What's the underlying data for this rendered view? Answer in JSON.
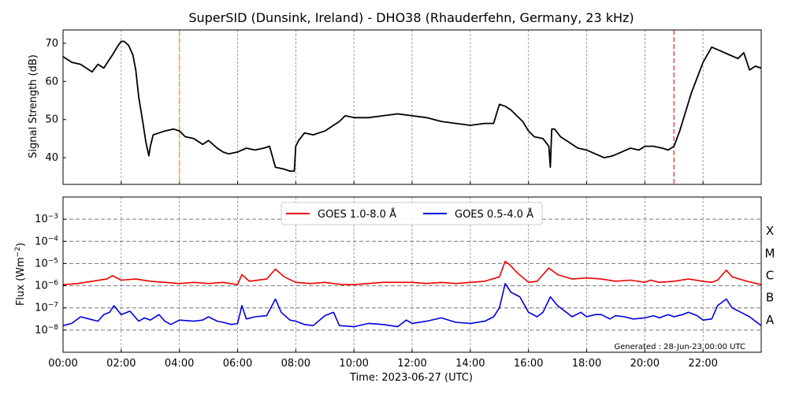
{
  "chart_data": [
    {
      "type": "line",
      "title": "SuperSID (Dunsink, Ireland) - DHO38 (Rhauderfehn, Germany, 23 kHz)",
      "ylabel": "Signal Strength (dB)",
      "xlabel": "",
      "xlim": [
        0,
        24
      ],
      "ylim": [
        33,
        73.5
      ],
      "yticks": [
        40,
        50,
        60,
        70
      ],
      "grid": "vertical dashed at every 2 hours",
      "markers": [
        {
          "x": 4.0,
          "color": "#ff9933",
          "style": "dash-dot"
        },
        {
          "x": 21.0,
          "color": "#ff4444",
          "style": "dashed"
        }
      ],
      "series": [
        {
          "color": "#000000",
          "x": [
            0.0,
            0.3,
            0.6,
            1.0,
            1.2,
            1.4,
            1.7,
            1.9,
            2.0,
            2.1,
            2.25,
            2.4,
            2.5,
            2.6,
            2.75,
            2.85,
            2.95,
            3.0,
            3.1,
            3.3,
            3.5,
            3.8,
            4.0,
            4.2,
            4.5,
            4.8,
            5.0,
            5.3,
            5.5,
            5.7,
            6.0,
            6.3,
            6.6,
            6.9,
            7.1,
            7.3,
            7.6,
            7.8,
            7.95,
            8.0,
            8.1,
            8.3,
            8.6,
            9.0,
            9.3,
            9.5,
            9.7,
            10.0,
            10.5,
            11.0,
            11.5,
            12.0,
            12.5,
            13.0,
            13.5,
            14.0,
            14.5,
            14.8,
            15.0,
            15.2,
            15.4,
            15.6,
            15.8,
            16.0,
            16.2,
            16.5,
            16.7,
            16.75,
            16.8,
            16.9,
            17.1,
            17.4,
            17.7,
            18.0,
            18.3,
            18.6,
            18.9,
            19.2,
            19.5,
            19.8,
            20.0,
            20.3,
            20.6,
            20.8,
            21.0,
            21.2,
            21.4,
            21.6,
            21.8,
            22.0,
            22.3,
            22.6,
            22.9,
            23.2,
            23.4,
            23.6,
            23.8,
            24.0
          ],
          "values": [
            66.5,
            65.0,
            64.5,
            62.5,
            64.5,
            63.5,
            67.0,
            69.5,
            70.5,
            70.5,
            69.5,
            67.0,
            63.0,
            56.0,
            49.0,
            44.0,
            40.5,
            43.0,
            46.0,
            46.5,
            47.0,
            47.5,
            47.0,
            45.5,
            45.0,
            43.5,
            44.5,
            42.5,
            41.5,
            41.0,
            41.5,
            42.5,
            42.0,
            42.5,
            43.0,
            37.5,
            37.0,
            36.5,
            36.5,
            43.0,
            44.5,
            46.5,
            46.0,
            47.0,
            48.5,
            49.5,
            51.0,
            50.5,
            50.5,
            51.0,
            51.5,
            51.0,
            50.5,
            49.5,
            49.0,
            48.5,
            49.0,
            49.0,
            54.0,
            53.5,
            52.5,
            51.0,
            49.5,
            47.0,
            45.5,
            45.0,
            43.0,
            37.5,
            47.5,
            47.5,
            45.5,
            44.0,
            42.5,
            42.0,
            41.0,
            40.0,
            40.5,
            41.5,
            42.5,
            42.0,
            43.0,
            43.0,
            42.5,
            42.0,
            43.0,
            47.0,
            52.0,
            57.0,
            61.0,
            65.0,
            69.0,
            68.0,
            67.0,
            66.0,
            67.5,
            63.0,
            64.0,
            63.5
          ]
        }
      ]
    },
    {
      "type": "line",
      "title": "",
      "xlabel": "Time: 2023-06-27 (UTC)",
      "ylabel": "Flux (Wm$^{-2}$)",
      "ylabel_parts": {
        "base": "Flux (Wm",
        "sup": "−2",
        "close": ")"
      },
      "yscale": "log",
      "ylim_log10": [
        -9.0,
        -2.0
      ],
      "yticks_log10": [
        -8,
        -7,
        -6,
        -5,
        -4,
        -3
      ],
      "xticks": [
        0,
        2,
        4,
        6,
        8,
        10,
        12,
        14,
        16,
        18,
        20,
        22
      ],
      "xtick_labels": [
        "00:00",
        "02:00",
        "04:00",
        "06:00",
        "08:00",
        "10:00",
        "12:00",
        "14:00",
        "16:00",
        "18:00",
        "20:00",
        "22:00"
      ],
      "legend": "upper-center",
      "flare_classes": [
        {
          "label": "X",
          "log10": -3
        },
        {
          "label": "M",
          "log10": -4
        },
        {
          "label": "C",
          "log10": -5
        },
        {
          "label": "B",
          "log10": -6
        },
        {
          "label": "A",
          "log10": -7
        }
      ],
      "annotation": "Generated : 28-Jun-23 00:00 UTC",
      "series": [
        {
          "name": "GOES 1.0-8.0 Å",
          "color": "#ee0000",
          "x": [
            0.0,
            0.5,
            1.0,
            1.5,
            1.7,
            2.0,
            2.5,
            3.0,
            3.5,
            4.0,
            4.5,
            5.0,
            5.5,
            6.0,
            6.15,
            6.4,
            7.0,
            7.3,
            7.6,
            8.0,
            8.5,
            9.0,
            9.3,
            9.6,
            10.0,
            11.0,
            12.0,
            12.5,
            13.0,
            13.5,
            14.0,
            14.5,
            15.0,
            15.2,
            15.35,
            15.6,
            16.0,
            16.3,
            16.5,
            16.7,
            17.0,
            17.5,
            18.0,
            18.5,
            19.0,
            19.5,
            20.0,
            20.2,
            20.5,
            21.0,
            21.5,
            22.0,
            22.3,
            22.5,
            22.8,
            23.0,
            23.5,
            24.0
          ],
          "values": [
            -5.95,
            -5.9,
            -5.8,
            -5.7,
            -5.55,
            -5.75,
            -5.7,
            -5.8,
            -5.85,
            -5.9,
            -5.85,
            -5.9,
            -5.85,
            -5.95,
            -5.5,
            -5.8,
            -5.7,
            -5.25,
            -5.6,
            -5.85,
            -5.9,
            -5.85,
            -5.9,
            -5.95,
            -5.95,
            -5.85,
            -5.85,
            -5.9,
            -5.85,
            -5.9,
            -5.85,
            -5.8,
            -5.6,
            -4.9,
            -5.05,
            -5.4,
            -5.85,
            -5.8,
            -5.5,
            -5.2,
            -5.5,
            -5.7,
            -5.65,
            -5.7,
            -5.8,
            -5.75,
            -5.85,
            -5.75,
            -5.85,
            -5.8,
            -5.7,
            -5.8,
            -5.85,
            -5.75,
            -5.3,
            -5.6,
            -5.8,
            -5.95
          ]
        },
        {
          "name": "GOES 0.5-4.0 Å",
          "color": "#0000dd",
          "x": [
            0.0,
            0.3,
            0.6,
            0.9,
            1.2,
            1.4,
            1.6,
            1.75,
            2.0,
            2.3,
            2.6,
            2.8,
            3.0,
            3.3,
            3.5,
            3.7,
            4.0,
            4.5,
            4.8,
            5.0,
            5.3,
            5.5,
            5.8,
            6.0,
            6.15,
            6.3,
            6.6,
            7.0,
            7.3,
            7.5,
            7.8,
            8.0,
            8.3,
            8.6,
            9.0,
            9.3,
            9.5,
            10.0,
            10.5,
            11.0,
            11.5,
            11.8,
            12.0,
            12.5,
            13.0,
            13.5,
            14.0,
            14.5,
            14.8,
            15.0,
            15.2,
            15.4,
            15.7,
            16.0,
            16.3,
            16.5,
            16.75,
            17.0,
            17.3,
            17.5,
            17.8,
            18.0,
            18.3,
            18.5,
            18.8,
            19.0,
            19.3,
            19.6,
            20.0,
            20.3,
            20.5,
            20.8,
            21.0,
            21.3,
            21.5,
            21.8,
            22.0,
            22.3,
            22.5,
            22.8,
            23.0,
            23.3,
            23.6,
            23.8,
            24.0
          ],
          "values": [
            -7.8,
            -7.7,
            -7.4,
            -7.5,
            -7.6,
            -7.3,
            -7.2,
            -6.9,
            -7.3,
            -7.15,
            -7.6,
            -7.45,
            -7.55,
            -7.3,
            -7.6,
            -7.75,
            -7.55,
            -7.6,
            -7.55,
            -7.4,
            -7.6,
            -7.65,
            -7.75,
            -7.7,
            -6.9,
            -7.5,
            -7.4,
            -7.35,
            -6.6,
            -7.2,
            -7.55,
            -7.6,
            -7.75,
            -7.8,
            -7.35,
            -7.2,
            -7.8,
            -7.85,
            -7.7,
            -7.75,
            -7.85,
            -7.55,
            -7.7,
            -7.6,
            -7.45,
            -7.65,
            -7.7,
            -7.6,
            -7.4,
            -7.0,
            -5.9,
            -6.3,
            -6.5,
            -7.2,
            -7.4,
            -7.2,
            -6.5,
            -6.9,
            -7.2,
            -7.4,
            -7.2,
            -7.4,
            -7.3,
            -7.3,
            -7.5,
            -7.35,
            -7.4,
            -7.5,
            -7.45,
            -7.35,
            -7.45,
            -7.3,
            -7.4,
            -7.3,
            -7.2,
            -7.35,
            -7.55,
            -7.5,
            -6.9,
            -6.6,
            -7.0,
            -7.2,
            -7.4,
            -7.6,
            -7.8
          ]
        }
      ]
    }
  ]
}
